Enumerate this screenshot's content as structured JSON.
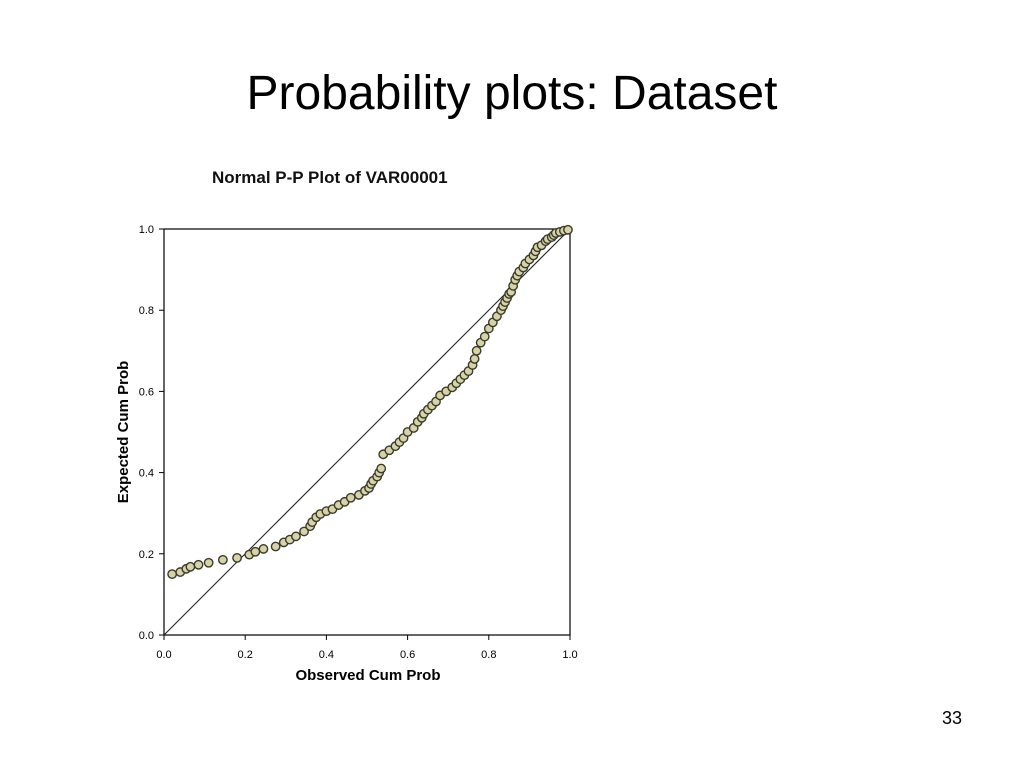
{
  "slide": {
    "title": "Probability plots: Dataset",
    "page_number": "33"
  },
  "chart_data": {
    "type": "scatter",
    "title": "Normal P-P Plot of VAR00001",
    "xlabel": "Observed Cum Prob",
    "ylabel": "Expected Cum Prob",
    "xlim": [
      0.0,
      1.0
    ],
    "ylim": [
      0.0,
      1.0
    ],
    "x_ticks": [
      "0.0",
      "0.2",
      "0.4",
      "0.6",
      "0.8",
      "1.0"
    ],
    "y_ticks": [
      "0.0",
      "0.2",
      "0.4",
      "0.6",
      "0.8",
      "1.0"
    ],
    "grid": false,
    "reference_line": {
      "from": [
        0,
        0
      ],
      "to": [
        1,
        1
      ]
    },
    "marker_fill": "#d6d3a8",
    "marker_stroke": "#3a3a2a",
    "points": [
      [
        0.02,
        0.15
      ],
      [
        0.04,
        0.155
      ],
      [
        0.055,
        0.163
      ],
      [
        0.065,
        0.168
      ],
      [
        0.085,
        0.173
      ],
      [
        0.11,
        0.178
      ],
      [
        0.145,
        0.185
      ],
      [
        0.18,
        0.19
      ],
      [
        0.21,
        0.198
      ],
      [
        0.225,
        0.205
      ],
      [
        0.245,
        0.212
      ],
      [
        0.275,
        0.218
      ],
      [
        0.295,
        0.228
      ],
      [
        0.31,
        0.235
      ],
      [
        0.325,
        0.243
      ],
      [
        0.345,
        0.255
      ],
      [
        0.36,
        0.268
      ],
      [
        0.365,
        0.278
      ],
      [
        0.375,
        0.29
      ],
      [
        0.385,
        0.298
      ],
      [
        0.4,
        0.305
      ],
      [
        0.415,
        0.31
      ],
      [
        0.43,
        0.32
      ],
      [
        0.445,
        0.328
      ],
      [
        0.46,
        0.338
      ],
      [
        0.48,
        0.345
      ],
      [
        0.495,
        0.355
      ],
      [
        0.505,
        0.362
      ],
      [
        0.51,
        0.372
      ],
      [
        0.515,
        0.38
      ],
      [
        0.525,
        0.39
      ],
      [
        0.53,
        0.4
      ],
      [
        0.535,
        0.41
      ],
      [
        0.54,
        0.445
      ],
      [
        0.555,
        0.455
      ],
      [
        0.57,
        0.465
      ],
      [
        0.58,
        0.475
      ],
      [
        0.59,
        0.485
      ],
      [
        0.6,
        0.5
      ],
      [
        0.615,
        0.51
      ],
      [
        0.625,
        0.525
      ],
      [
        0.635,
        0.535
      ],
      [
        0.64,
        0.545
      ],
      [
        0.65,
        0.555
      ],
      [
        0.66,
        0.565
      ],
      [
        0.67,
        0.575
      ],
      [
        0.68,
        0.59
      ],
      [
        0.695,
        0.6
      ],
      [
        0.71,
        0.61
      ],
      [
        0.72,
        0.62
      ],
      [
        0.73,
        0.63
      ],
      [
        0.74,
        0.64
      ],
      [
        0.75,
        0.65
      ],
      [
        0.76,
        0.665
      ],
      [
        0.765,
        0.68
      ],
      [
        0.77,
        0.7
      ],
      [
        0.78,
        0.72
      ],
      [
        0.79,
        0.735
      ],
      [
        0.8,
        0.755
      ],
      [
        0.81,
        0.77
      ],
      [
        0.82,
        0.785
      ],
      [
        0.83,
        0.8
      ],
      [
        0.835,
        0.81
      ],
      [
        0.84,
        0.82
      ],
      [
        0.845,
        0.83
      ],
      [
        0.85,
        0.84
      ],
      [
        0.855,
        0.845
      ],
      [
        0.86,
        0.86
      ],
      [
        0.865,
        0.875
      ],
      [
        0.87,
        0.885
      ],
      [
        0.875,
        0.895
      ],
      [
        0.885,
        0.905
      ],
      [
        0.89,
        0.915
      ],
      [
        0.9,
        0.925
      ],
      [
        0.91,
        0.935
      ],
      [
        0.915,
        0.945
      ],
      [
        0.92,
        0.955
      ],
      [
        0.93,
        0.96
      ],
      [
        0.94,
        0.97
      ],
      [
        0.945,
        0.975
      ],
      [
        0.955,
        0.98
      ],
      [
        0.96,
        0.985
      ],
      [
        0.965,
        0.99
      ],
      [
        0.975,
        0.993
      ],
      [
        0.985,
        0.996
      ],
      [
        0.995,
        0.998
      ]
    ]
  }
}
